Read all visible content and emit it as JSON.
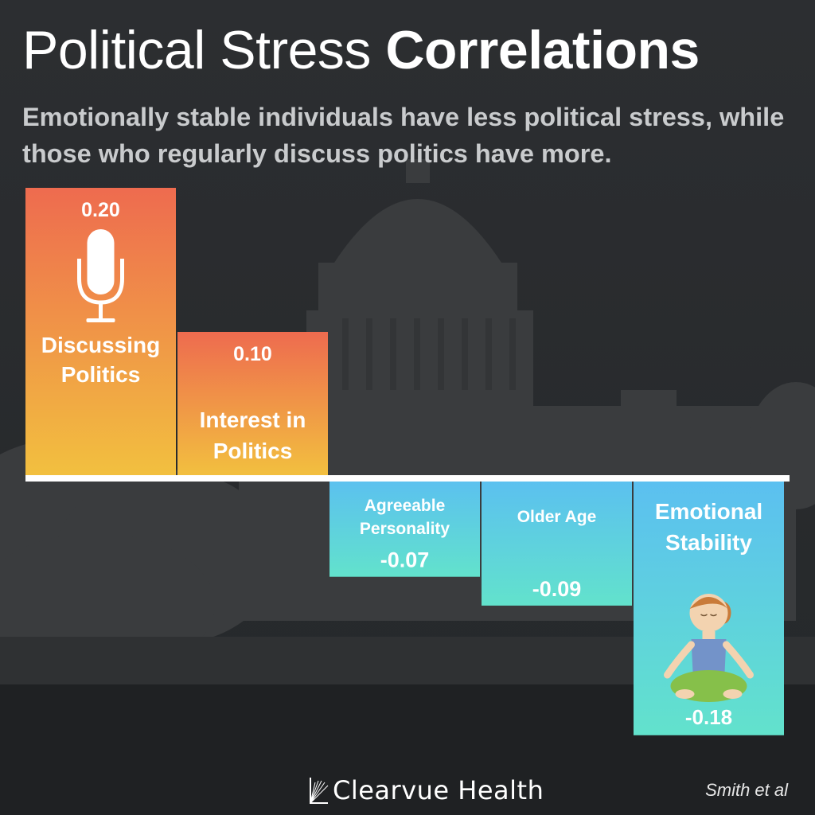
{
  "header": {
    "title_light": "Political Stress",
    "title_bold": "Correlations",
    "subtitle": "Emotionally stable individuals have less political stress, while those who regularly discuss politics have more."
  },
  "footer": {
    "brand": "Clearvue Health",
    "source": "Smith et al"
  },
  "colors": {
    "positive_top": "#ee6b4f",
    "positive_bottom": "#f2c03f",
    "negative_top": "#5bbff1",
    "negative_bottom": "#62e2cc",
    "baseline": "#ffffff"
  },
  "chart_data": {
    "type": "bar",
    "categories": [
      "Discussing Politics",
      "Interest in Politics",
      "Agreeable Personality",
      "Older Age",
      "Emotional Stability"
    ],
    "values": [
      0.2,
      0.1,
      -0.07,
      -0.09,
      -0.18
    ],
    "value_labels": [
      "0.20",
      "0.10",
      "-0.07",
      "-0.09",
      "-0.18"
    ],
    "label_lines": [
      [
        "Discussing",
        "Politics"
      ],
      [
        "Interest in",
        "Politics"
      ],
      [
        "Agreeable",
        "Personality"
      ],
      [
        "Older Age"
      ],
      [
        "Emotional",
        "Stability"
      ]
    ],
    "icons": [
      "microphone-icon",
      "",
      "",
      "",
      "meditation-icon"
    ],
    "title": "",
    "xlabel": "",
    "ylabel": "",
    "grid": false
  }
}
